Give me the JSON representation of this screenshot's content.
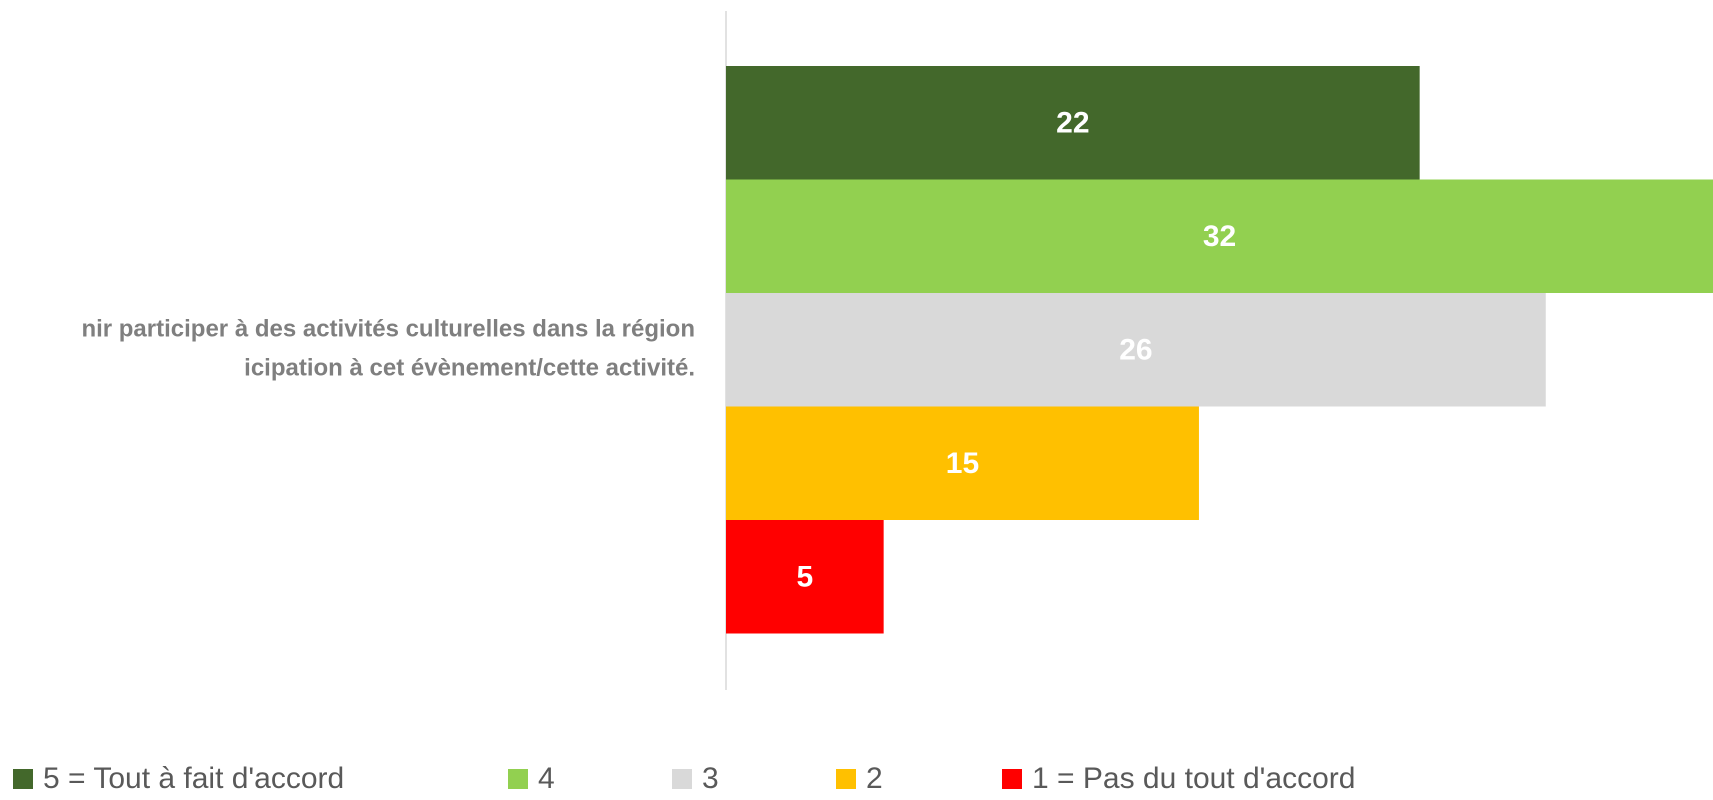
{
  "chart_data": {
    "type": "bar",
    "orientation": "horizontal",
    "categories": [
      "nir participer à des activités culturelles dans la région\nicipation à cet évènement/cette activité."
    ],
    "series": [
      {
        "name": "5 = Tout à fait d'accord",
        "color": "#43682b",
        "values": [
          22
        ]
      },
      {
        "name": "4",
        "color": "#92d050",
        "values": [
          32
        ]
      },
      {
        "name": "3",
        "color": "#d9d9d9",
        "values": [
          26
        ]
      },
      {
        "name": "2",
        "color": "#ffc000",
        "values": [
          15
        ]
      },
      {
        "name": "1 = Pas du tout d'accord",
        "color": "#ff0000",
        "values": [
          5
        ]
      }
    ],
    "legend": "bottom"
  }
}
